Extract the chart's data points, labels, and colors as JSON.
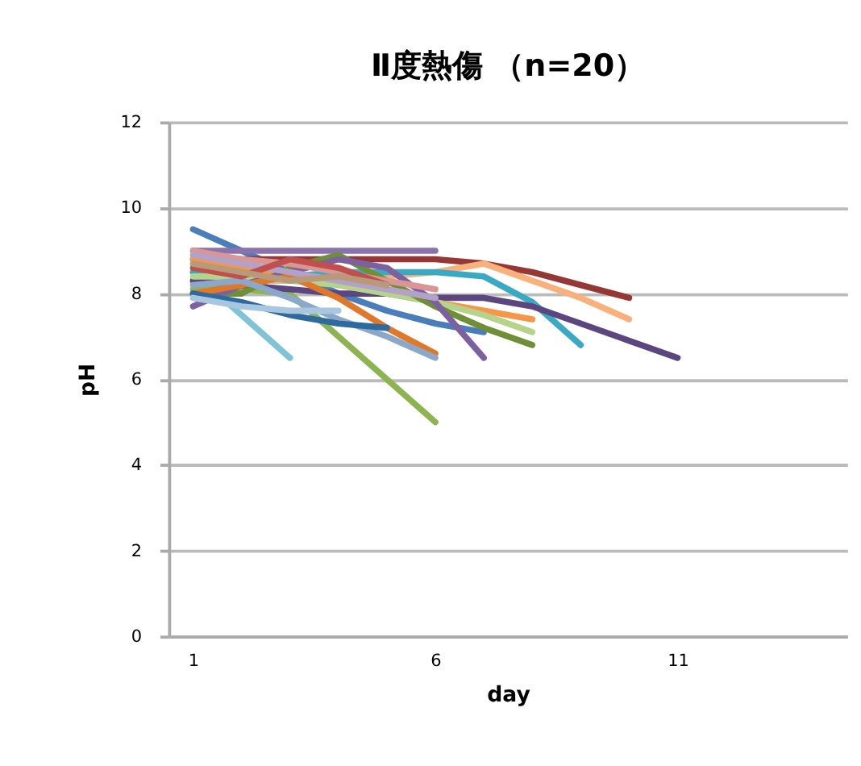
{
  "chart_data": {
    "type": "line",
    "title": "Ⅱ度熱傷 （n=20）",
    "xlabel": "day",
    "ylabel": "pH",
    "xlim": [
      0.5,
      14.5
    ],
    "xticks": [
      1,
      6,
      11
    ],
    "ylim": [
      0,
      12
    ],
    "yticks": [
      0,
      2,
      4,
      6,
      8,
      10,
      12
    ],
    "grid": "y",
    "legend": false,
    "marker": "none",
    "line_style": "solid",
    "series": [
      {
        "color": "#4a7ebb",
        "x": [
          1,
          2,
          3,
          4,
          5,
          6,
          7
        ],
        "values": [
          9.5,
          9.0,
          8.5,
          8.0,
          7.6,
          7.3,
          7.1
        ]
      },
      {
        "color": "#7fc3d6",
        "x": [
          1,
          2,
          3
        ],
        "values": [
          8.5,
          7.5,
          6.5
        ]
      },
      {
        "color": "#8cb450",
        "x": [
          1,
          2,
          3,
          4,
          5,
          6
        ],
        "values": [
          8.1,
          8.1,
          8.0,
          7.0,
          6.0,
          5.0
        ]
      },
      {
        "color": "#8a72aa",
        "x": [
          1,
          2,
          3,
          4,
          5,
          6
        ],
        "values": [
          9.0,
          9.0,
          9.0,
          9.0,
          9.0,
          9.0
        ]
      },
      {
        "color": "#953735",
        "x": [
          1,
          2,
          3,
          4,
          5,
          6,
          7,
          8,
          9,
          10
        ],
        "values": [
          8.8,
          8.8,
          8.8,
          8.8,
          8.8,
          8.8,
          8.7,
          8.5,
          8.2,
          7.9
        ]
      },
      {
        "color": "#fab07a",
        "x": [
          1,
          2,
          3,
          4,
          5,
          6,
          7,
          8,
          9,
          10
        ],
        "values": [
          8.3,
          8.3,
          8.3,
          8.4,
          8.4,
          8.5,
          8.7,
          8.3,
          7.9,
          7.4
        ]
      },
      {
        "color": "#3aaac4",
        "x": [
          1,
          2,
          3,
          4,
          5,
          6,
          7,
          8,
          9
        ],
        "values": [
          8.5,
          8.4,
          8.4,
          8.5,
          8.5,
          8.5,
          8.4,
          7.8,
          6.8
        ]
      },
      {
        "color": "#5c4680",
        "x": [
          1,
          2,
          3,
          4,
          5,
          6,
          7,
          8,
          9,
          10,
          11
        ],
        "values": [
          8.3,
          8.2,
          8.1,
          8.0,
          8.0,
          7.9,
          7.9,
          7.7,
          7.3,
          6.9,
          6.5
        ]
      },
      {
        "color": "#f79646",
        "x": [
          1,
          2,
          3,
          4,
          5,
          6,
          7,
          8
        ],
        "values": [
          8.8,
          8.6,
          8.4,
          8.2,
          8.0,
          7.8,
          7.6,
          7.4
        ]
      },
      {
        "color": "#b5d38a",
        "x": [
          1,
          2,
          3,
          4,
          5,
          6,
          7,
          8
        ],
        "values": [
          8.4,
          8.4,
          8.3,
          8.2,
          8.0,
          7.8,
          7.5,
          7.1
        ]
      },
      {
        "color": "#6e8f35",
        "x": [
          1,
          2,
          3,
          4,
          5,
          6,
          7,
          8
        ],
        "values": [
          8.0,
          8.0,
          8.6,
          8.9,
          8.3,
          7.7,
          7.2,
          6.8
        ]
      },
      {
        "color": "#7d60a0",
        "x": [
          1,
          2,
          3,
          4,
          5,
          6,
          7
        ],
        "values": [
          7.7,
          8.2,
          8.5,
          8.8,
          8.6,
          7.8,
          6.5
        ]
      },
      {
        "color": "#e0782a",
        "x": [
          1,
          2,
          3,
          4,
          5,
          6
        ],
        "values": [
          8.0,
          8.2,
          8.4,
          7.9,
          7.2,
          6.6
        ]
      },
      {
        "color": "#8ba7c9",
        "x": [
          1,
          2,
          3,
          4,
          5,
          6
        ],
        "values": [
          8.2,
          8.3,
          7.9,
          7.4,
          7.0,
          6.5
        ]
      },
      {
        "color": "#d99694",
        "x": [
          1,
          2,
          3,
          4,
          5,
          6
        ],
        "values": [
          9.0,
          8.8,
          8.7,
          8.5,
          8.3,
          8.1
        ]
      },
      {
        "color": "#b3a2c7",
        "x": [
          1,
          2,
          3,
          4,
          5,
          6
        ],
        "values": [
          8.9,
          8.7,
          8.5,
          8.3,
          8.1,
          7.9
        ]
      },
      {
        "color": "#2e6a9e",
        "x": [
          1,
          2,
          3,
          4,
          5
        ],
        "values": [
          8.0,
          7.8,
          7.5,
          7.3,
          7.2
        ]
      },
      {
        "color": "#c0504d",
        "x": [
          1,
          2,
          3,
          4,
          5
        ],
        "values": [
          8.6,
          8.4,
          8.8,
          8.6,
          8.2
        ]
      },
      {
        "color": "#a9c6e0",
        "x": [
          1,
          2,
          3,
          4
        ],
        "values": [
          7.9,
          7.7,
          7.6,
          7.6
        ]
      },
      {
        "color": "#b89a7a",
        "x": [
          1,
          2,
          3,
          4,
          5
        ],
        "values": [
          8.7,
          8.5,
          8.3,
          8.4,
          8.2
        ]
      }
    ]
  }
}
